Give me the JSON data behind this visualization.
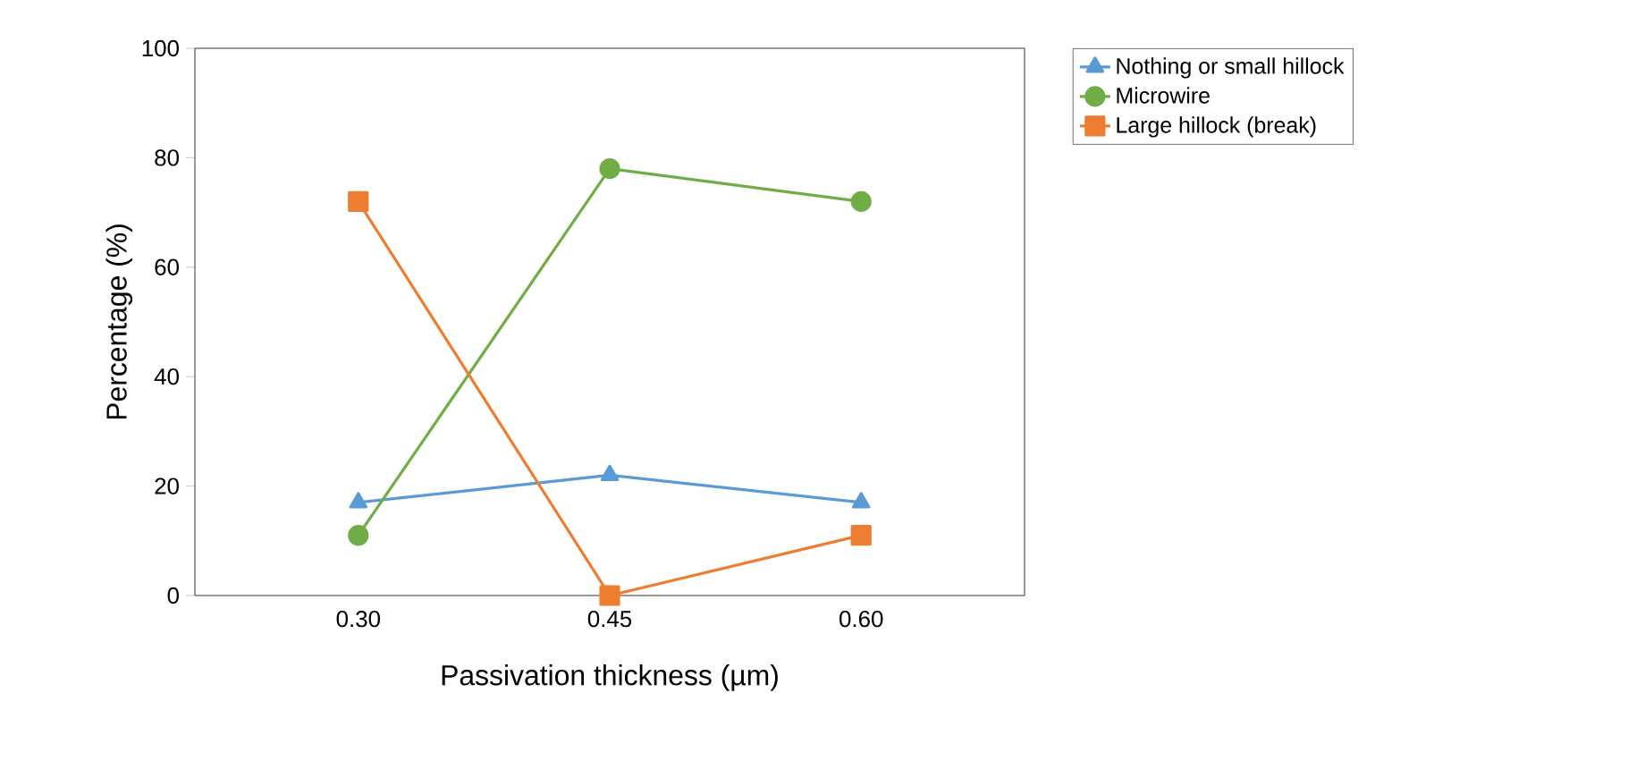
{
  "chart_data": {
    "type": "line",
    "xlabel": "Passivation thickness (µm)",
    "ylabel": "Percentage (%)",
    "categories": [
      "0.30",
      "0.45",
      "0.60"
    ],
    "series": [
      {
        "name": "Nothing or small hillock",
        "color": "#5b9bd5",
        "marker": "triangle",
        "values": [
          17,
          22,
          17
        ]
      },
      {
        "name": "Microwire",
        "color": "#70ad47",
        "marker": "circle",
        "values": [
          11,
          78,
          72
        ]
      },
      {
        "name": "Large hillock (break)",
        "color": "#ed7d31",
        "marker": "square",
        "values": [
          72,
          0,
          11
        ]
      }
    ],
    "ylim": [
      0,
      100
    ],
    "yticks": [
      0,
      20,
      40,
      60,
      80,
      100
    ],
    "grid": false,
    "legend": "top right",
    "line_style": "solid"
  }
}
